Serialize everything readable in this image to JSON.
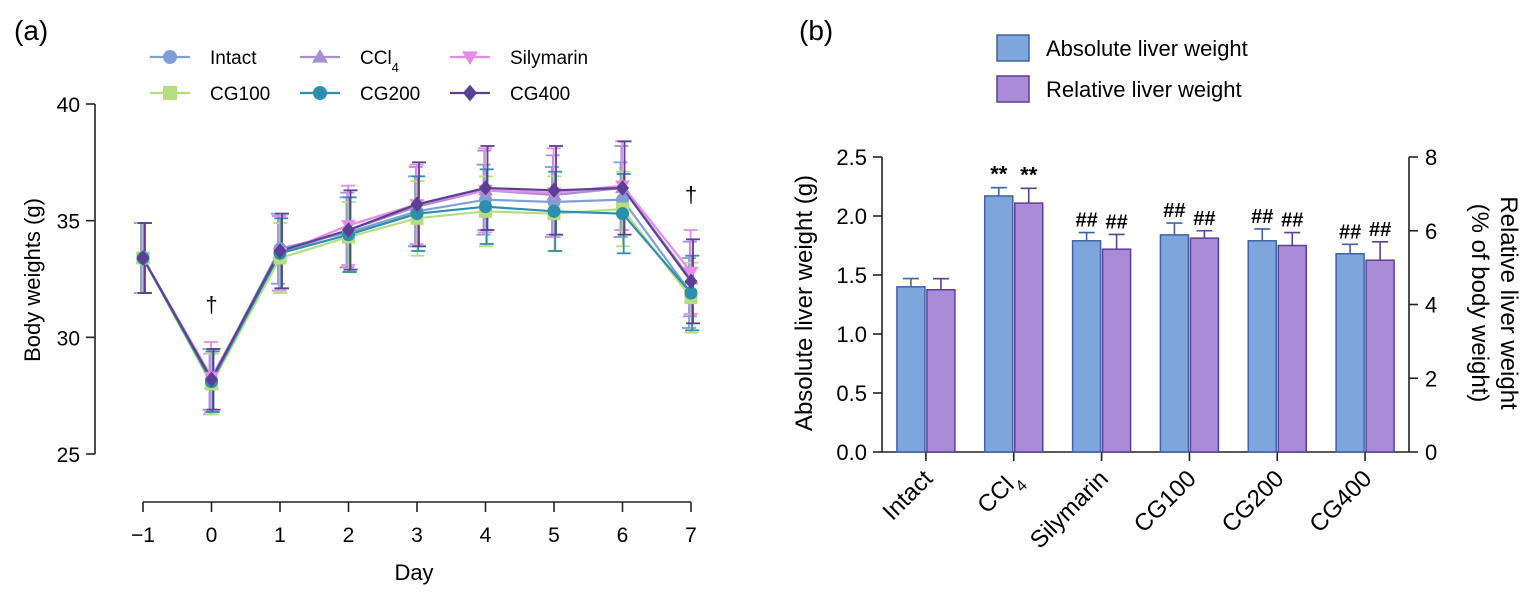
{
  "chart_data": [
    {
      "panel_label": "(a)",
      "type": "line",
      "xlabel": "Day",
      "ylabel": "Body weights (g)",
      "x": [
        -1,
        0,
        1,
        2,
        3,
        4,
        5,
        6,
        7
      ],
      "x_tick_labels": [
        "−1",
        "0",
        "1",
        "2",
        "3",
        "4",
        "5",
        "6",
        "7"
      ],
      "ylim": [
        25,
        40
      ],
      "y_ticks": [
        25,
        30,
        35,
        40
      ],
      "legend_position": "top",
      "annotations": [
        {
          "x": 0,
          "text": "†"
        },
        {
          "x": 7,
          "text": "†"
        }
      ],
      "series": [
        {
          "name": "Intact",
          "marker": "circle",
          "color": "#7f9fd6",
          "values": [
            33.4,
            28.2,
            33.8,
            34.5,
            35.4,
            35.9,
            35.8,
            35.9,
            31.9
          ],
          "errors": [
            1.5,
            1.3,
            1.5,
            1.5,
            1.5,
            1.5,
            1.5,
            1.6,
            1.5
          ]
        },
        {
          "name": "CCl4",
          "label_base": "CCl",
          "label_sub": "4",
          "marker": "triangle-up",
          "color": "#a88fd5",
          "values": [
            33.4,
            28.0,
            33.6,
            34.6,
            35.6,
            36.3,
            36.1,
            36.4,
            32.5
          ],
          "errors": [
            1.5,
            1.3,
            1.6,
            1.6,
            1.7,
            1.7,
            1.7,
            1.8,
            1.6
          ]
        },
        {
          "name": "Silymarin",
          "marker": "triangle-down",
          "color": "#e68be6",
          "values": [
            33.4,
            28.3,
            33.6,
            34.8,
            35.7,
            36.3,
            36.2,
            36.5,
            32.8
          ],
          "errors": [
            1.5,
            1.5,
            1.6,
            1.7,
            1.7,
            1.8,
            1.9,
            1.9,
            1.8
          ]
        },
        {
          "name": "CG100",
          "marker": "square",
          "color": "#b5de7e",
          "values": [
            33.4,
            28.0,
            33.4,
            34.3,
            35.1,
            35.4,
            35.3,
            35.5,
            31.7
          ],
          "errors": [
            1.5,
            1.3,
            1.5,
            1.5,
            1.6,
            1.5,
            1.6,
            1.6,
            1.5
          ]
        },
        {
          "name": "CG200",
          "marker": "circle",
          "color": "#2b8fad",
          "values": [
            33.4,
            28.1,
            33.6,
            34.4,
            35.3,
            35.6,
            35.4,
            35.3,
            31.9
          ],
          "errors": [
            1.5,
            1.3,
            1.5,
            1.6,
            1.6,
            1.6,
            1.7,
            1.7,
            1.6
          ]
        },
        {
          "name": "CG400",
          "marker": "diamond",
          "color": "#5b3f93",
          "values": [
            33.4,
            28.2,
            33.7,
            34.6,
            35.7,
            36.4,
            36.3,
            36.4,
            32.4
          ],
          "errors": [
            1.5,
            1.3,
            1.6,
            1.7,
            1.8,
            1.8,
            1.9,
            2.0,
            1.8
          ]
        }
      ]
    },
    {
      "panel_label": "(b)",
      "type": "bar",
      "categories": [
        {
          "label": "Intact"
        },
        {
          "label": "CCl4",
          "label_base": "CCl",
          "label_sub": "4"
        },
        {
          "label": "Silymarin"
        },
        {
          "label": "CG100"
        },
        {
          "label": "CG200"
        },
        {
          "label": "CG400"
        }
      ],
      "ylabel_left": "Absolute liver weight (g)",
      "ylabel_right_line1": "Relative liver weight",
      "ylabel_right_line2": "(% of body weight)",
      "ylim_left": [
        0,
        2.5
      ],
      "y_ticks_left": [
        "0.0",
        "0.5",
        "1.0",
        "1.5",
        "2.0",
        "2.5"
      ],
      "ylim_right": [
        0,
        8
      ],
      "y_ticks_right": [
        "0",
        "2",
        "4",
        "6",
        "8"
      ],
      "legend_position": "top",
      "series": [
        {
          "name": "Absolute liver weight",
          "axis": "left",
          "color": "#7ea6dc",
          "edge": "#3f62a8",
          "values": [
            1.4,
            2.17,
            1.79,
            1.84,
            1.79,
            1.68
          ],
          "errors": [
            0.07,
            0.07,
            0.07,
            0.1,
            0.1,
            0.08
          ],
          "sig": [
            "",
            "**",
            "##",
            "##",
            "##",
            "##"
          ]
        },
        {
          "name": "Relative liver weight",
          "axis": "right",
          "color": "#a98bd7",
          "edge": "#5d3f96",
          "values": [
            4.4,
            6.75,
            5.5,
            5.8,
            5.6,
            5.2
          ],
          "errors": [
            0.3,
            0.4,
            0.4,
            0.2,
            0.35,
            0.5
          ],
          "sig": [
            "",
            "**",
            "##",
            "##",
            "##",
            "##"
          ]
        }
      ]
    }
  ]
}
